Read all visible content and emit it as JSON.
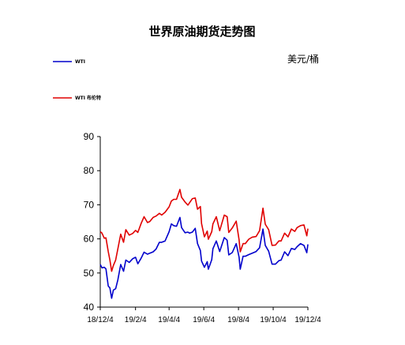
{
  "chart_data": {
    "type": "line",
    "title": "世界原油期货走势图",
    "unit_label": "美元/桶",
    "ylim": [
      40,
      90
    ],
    "yticks": [
      40,
      50,
      60,
      70,
      80,
      90
    ],
    "xlim": [
      "18/12/4",
      "19/12/4"
    ],
    "x_ticks": [
      "18/12/4",
      "19/2/4",
      "19/4/4",
      "19/6/4",
      "19/8/4",
      "19/10/4",
      "19/12/4"
    ],
    "grid": false,
    "legend_position": "top-left",
    "series": [
      {
        "name": "WTI",
        "color": "#0000cc",
        "points": [
          [
            "18/12/4",
            52.5
          ],
          [
            "18/12/7",
            51.5
          ],
          [
            "18/12/11",
            51.7
          ],
          [
            "18/12/14",
            51.2
          ],
          [
            "18/12/18",
            46.2
          ],
          [
            "18/12/21",
            45.6
          ],
          [
            "18/12/24",
            42.6
          ],
          [
            "18/12/27",
            45.0
          ],
          [
            "18/12/31",
            45.4
          ],
          [
            "19/1/4",
            48.0
          ],
          [
            "19/1/9",
            52.5
          ],
          [
            "19/1/14",
            50.5
          ],
          [
            "19/1/18",
            53.8
          ],
          [
            "19/1/24",
            53.1
          ],
          [
            "19/1/30",
            54.2
          ],
          [
            "19/2/4",
            54.6
          ],
          [
            "19/2/8",
            52.7
          ],
          [
            "19/2/14",
            54.4
          ],
          [
            "19/2/19",
            56.1
          ],
          [
            "19/2/25",
            55.5
          ],
          [
            "19/3/1",
            55.8
          ],
          [
            "19/3/7",
            56.2
          ],
          [
            "19/3/12",
            57.0
          ],
          [
            "19/3/18",
            59.0
          ],
          [
            "19/3/22",
            59.0
          ],
          [
            "19/3/28",
            59.4
          ],
          [
            "19/4/4",
            62.1
          ],
          [
            "19/4/8",
            64.4
          ],
          [
            "19/4/12",
            63.9
          ],
          [
            "19/4/17",
            63.7
          ],
          [
            "19/4/23",
            66.3
          ],
          [
            "19/4/26",
            63.3
          ],
          [
            "19/5/2",
            61.8
          ],
          [
            "19/5/7",
            62.0
          ],
          [
            "19/5/10",
            61.7
          ],
          [
            "19/5/15",
            62.0
          ],
          [
            "19/5/20",
            63.1
          ],
          [
            "19/5/24",
            58.6
          ],
          [
            "19/5/29",
            56.6
          ],
          [
            "19/5/31",
            53.5
          ],
          [
            "19/6/5",
            51.7
          ],
          [
            "19/6/10",
            53.3
          ],
          [
            "19/6/12",
            51.1
          ],
          [
            "19/6/18",
            53.9
          ],
          [
            "19/6/20",
            57.1
          ],
          [
            "19/6/26",
            59.4
          ],
          [
            "19/7/2",
            56.3
          ],
          [
            "19/7/10",
            60.4
          ],
          [
            "19/7/15",
            59.6
          ],
          [
            "19/7/18",
            55.3
          ],
          [
            "19/7/24",
            56.0
          ],
          [
            "19/7/31",
            58.6
          ],
          [
            "19/8/5",
            54.7
          ],
          [
            "19/8/7",
            51.1
          ],
          [
            "19/8/12",
            54.9
          ],
          [
            "19/8/16",
            54.9
          ],
          [
            "19/8/22",
            55.4
          ],
          [
            "19/8/28",
            55.8
          ],
          [
            "19/9/4",
            56.3
          ],
          [
            "19/9/10",
            57.4
          ],
          [
            "19/9/16",
            62.9
          ],
          [
            "19/9/20",
            58.1
          ],
          [
            "19/9/26",
            56.4
          ],
          [
            "19/10/2",
            52.6
          ],
          [
            "19/10/8",
            52.6
          ],
          [
            "19/10/14",
            53.6
          ],
          [
            "19/10/18",
            53.8
          ],
          [
            "19/10/24",
            56.2
          ],
          [
            "19/10/30",
            55.1
          ],
          [
            "19/11/5",
            57.2
          ],
          [
            "19/11/11",
            56.9
          ],
          [
            "19/11/15",
            57.7
          ],
          [
            "19/11/21",
            58.6
          ],
          [
            "19/11/27",
            58.1
          ],
          [
            "19/12/2",
            55.96
          ],
          [
            "19/12/4",
            58.4
          ]
        ]
      },
      {
        "name": "WTI 布伦特",
        "color": "#e00000",
        "points": [
          [
            "18/12/4",
            62.1
          ],
          [
            "18/12/7",
            61.7
          ],
          [
            "18/12/11",
            60.2
          ],
          [
            "18/12/14",
            60.3
          ],
          [
            "18/12/18",
            56.3
          ],
          [
            "18/12/21",
            53.8
          ],
          [
            "18/12/24",
            50.5
          ],
          [
            "18/12/27",
            52.2
          ],
          [
            "18/12/31",
            53.8
          ],
          [
            "19/1/4",
            57.1
          ],
          [
            "19/1/9",
            61.4
          ],
          [
            "19/1/14",
            59.0
          ],
          [
            "19/1/18",
            62.7
          ],
          [
            "19/1/24",
            61.1
          ],
          [
            "19/1/30",
            61.6
          ],
          [
            "19/2/4",
            62.5
          ],
          [
            "19/2/8",
            61.9
          ],
          [
            "19/2/14",
            64.6
          ],
          [
            "19/2/19",
            66.5
          ],
          [
            "19/2/25",
            64.8
          ],
          [
            "19/3/1",
            65.1
          ],
          [
            "19/3/7",
            66.3
          ],
          [
            "19/3/12",
            66.7
          ],
          [
            "19/3/18",
            67.5
          ],
          [
            "19/3/22",
            67.0
          ],
          [
            "19/3/28",
            67.8
          ],
          [
            "19/4/4",
            69.4
          ],
          [
            "19/4/8",
            71.1
          ],
          [
            "19/4/12",
            71.6
          ],
          [
            "19/4/17",
            71.6
          ],
          [
            "19/4/23",
            74.5
          ],
          [
            "19/4/26",
            72.2
          ],
          [
            "19/5/2",
            70.8
          ],
          [
            "19/5/7",
            69.9
          ],
          [
            "19/5/10",
            70.6
          ],
          [
            "19/5/15",
            71.8
          ],
          [
            "19/5/20",
            72.0
          ],
          [
            "19/5/24",
            68.7
          ],
          [
            "19/5/29",
            69.5
          ],
          [
            "19/5/31",
            64.5
          ],
          [
            "19/6/5",
            60.6
          ],
          [
            "19/6/10",
            62.3
          ],
          [
            "19/6/12",
            59.9
          ],
          [
            "19/6/18",
            62.1
          ],
          [
            "19/6/20",
            64.4
          ],
          [
            "19/6/26",
            66.5
          ],
          [
            "19/7/2",
            62.4
          ],
          [
            "19/7/10",
            67.0
          ],
          [
            "19/7/15",
            66.5
          ],
          [
            "19/7/18",
            61.9
          ],
          [
            "19/7/24",
            63.2
          ],
          [
            "19/7/31",
            65.2
          ],
          [
            "19/8/5",
            59.8
          ],
          [
            "19/8/7",
            56.2
          ],
          [
            "19/8/12",
            58.6
          ],
          [
            "19/8/16",
            58.6
          ],
          [
            "19/8/22",
            59.9
          ],
          [
            "19/8/28",
            60.5
          ],
          [
            "19/9/4",
            60.7
          ],
          [
            "19/9/10",
            62.4
          ],
          [
            "19/9/16",
            69.0
          ],
          [
            "19/9/20",
            64.3
          ],
          [
            "19/9/26",
            62.7
          ],
          [
            "19/10/2",
            58.1
          ],
          [
            "19/10/8",
            58.2
          ],
          [
            "19/10/14",
            59.4
          ],
          [
            "19/10/18",
            59.4
          ],
          [
            "19/10/24",
            61.7
          ],
          [
            "19/10/30",
            60.6
          ],
          [
            "19/11/5",
            62.9
          ],
          [
            "19/11/11",
            62.2
          ],
          [
            "19/11/15",
            63.3
          ],
          [
            "19/11/21",
            63.9
          ],
          [
            "19/11/27",
            64.1
          ],
          [
            "19/12/2",
            60.9
          ],
          [
            "19/12/4",
            63.0
          ]
        ]
      }
    ]
  }
}
